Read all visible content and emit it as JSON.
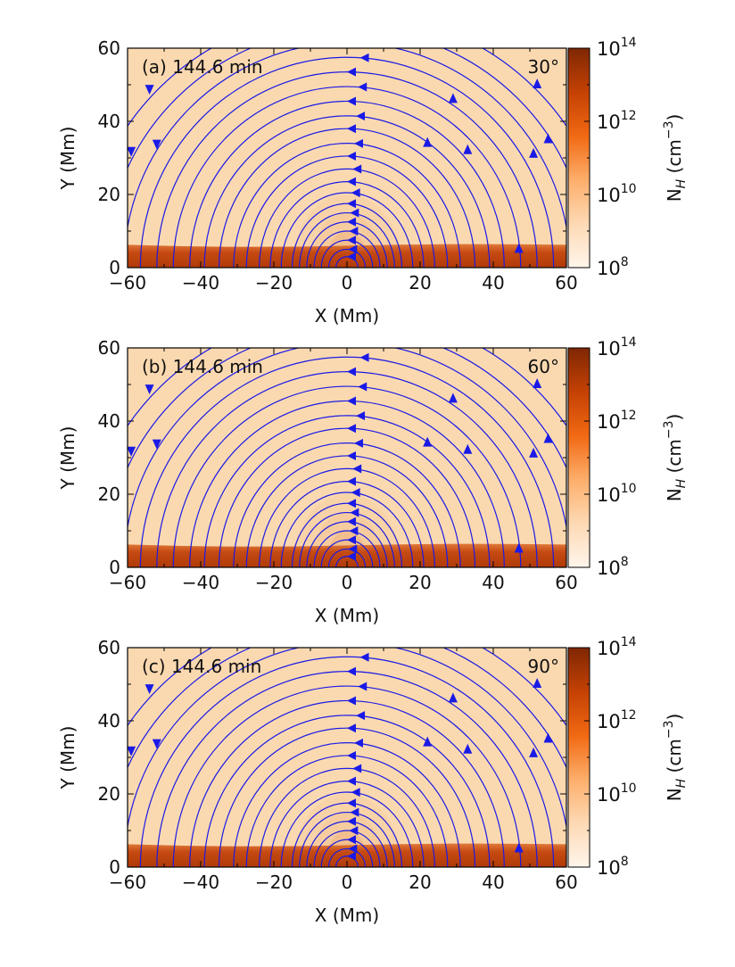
{
  "figure": {
    "colorbar_label_main": "N",
    "colorbar_label_sub": "H",
    "colorbar_label_units": "(cm",
    "colorbar_label_exp": "−3",
    "colorbar_label_close": ")"
  },
  "chart_data": [
    {
      "type": "heatmap",
      "panel": "(a)",
      "time": "144.6 min",
      "angle": "30°",
      "xlabel": "X (Mm)",
      "ylabel": "Y (Mm)",
      "xlim": [
        -60,
        60
      ],
      "ylim": [
        0,
        60
      ],
      "xticks": [
        "−60",
        "−40",
        "−20",
        "0",
        "20",
        "40",
        "60"
      ],
      "yticks": [
        "0",
        "20",
        "40",
        "60"
      ],
      "colorbar": {
        "label": "N_H (cm^-3)",
        "scale": "log",
        "range": [
          100000000.0,
          100000000000000.0
        ],
        "ticks": [
          "10^8",
          "10^10",
          "10^12",
          "10^14"
        ]
      },
      "overlay": "magnetic field streamlines (blue) with direction arrows",
      "streamline_color": "#1a1ae6",
      "chromosphere_top_Mm": 6,
      "coronal_density_log": 9.6,
      "chromosphere_density_log": 13.2
    },
    {
      "type": "heatmap",
      "panel": "(b)",
      "time": "144.6 min",
      "angle": "60°",
      "xlabel": "X (Mm)",
      "ylabel": "Y (Mm)",
      "xlim": [
        -60,
        60
      ],
      "ylim": [
        0,
        60
      ],
      "xticks": [
        "−60",
        "−40",
        "−20",
        "0",
        "20",
        "40",
        "60"
      ],
      "yticks": [
        "0",
        "20",
        "40",
        "60"
      ],
      "colorbar": {
        "label": "N_H (cm^-3)",
        "scale": "log",
        "range": [
          100000000.0,
          100000000000000.0
        ],
        "ticks": [
          "10^8",
          "10^10",
          "10^12",
          "10^14"
        ]
      },
      "overlay": "magnetic field streamlines (blue) with direction arrows",
      "streamline_color": "#1a1ae6",
      "chromosphere_top_Mm": 6,
      "coronal_density_log": 9.6,
      "chromosphere_density_log": 13.2
    },
    {
      "type": "heatmap",
      "panel": "(c)",
      "time": "144.6 min",
      "angle": "90°",
      "xlabel": "X (Mm)",
      "ylabel": "Y (Mm)",
      "xlim": [
        -60,
        60
      ],
      "ylim": [
        0,
        60
      ],
      "xticks": [
        "−60",
        "−40",
        "−20",
        "0",
        "20",
        "40",
        "60"
      ],
      "yticks": [
        "0",
        "20",
        "40",
        "60"
      ],
      "colorbar": {
        "label": "N_H (cm^-3)",
        "scale": "log",
        "range": [
          100000000.0,
          100000000000000.0
        ],
        "ticks": [
          "10^8",
          "10^10",
          "10^12",
          "10^14"
        ]
      },
      "overlay": "magnetic field streamlines (blue) with direction arrows",
      "streamline_color": "#1a1ae6",
      "chromosphere_top_Mm": 6,
      "coronal_density_log": 9.6,
      "chromosphere_density_log": 13.2
    }
  ]
}
